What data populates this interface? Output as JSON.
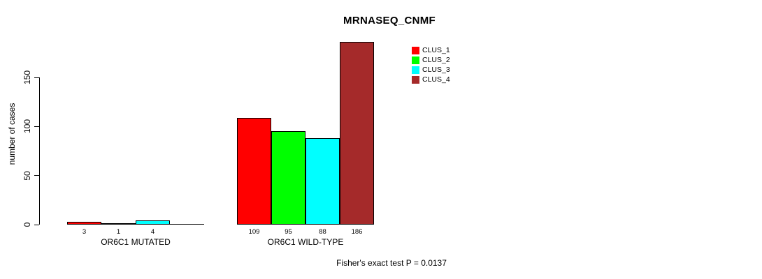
{
  "title": "MRNASEQ_CNMF",
  "y_axis": {
    "label": "number of cases",
    "ticks": [
      0,
      50,
      100,
      150
    ]
  },
  "footer": "Fisher's exact test P = 0.0137",
  "legend": [
    {
      "label": "CLUS_1",
      "color": "#FF0000"
    },
    {
      "label": "CLUS_2",
      "color": "#00FF00"
    },
    {
      "label": "CLUS_3",
      "color": "#00FFFF"
    },
    {
      "label": "CLUS_4",
      "color": "#A52A2A"
    }
  ],
  "chart_data": {
    "type": "bar",
    "title": "MRNASEQ_CNMF",
    "xlabel": "",
    "ylabel": "number of cases",
    "ylim": [
      0,
      150
    ],
    "yticks": [
      0,
      50,
      100,
      150
    ],
    "grid": false,
    "legend_position": "top-right-inside",
    "categories": [
      "OR6C1 MUTATED",
      "OR6C1 WILD-TYPE"
    ],
    "series": [
      {
        "name": "CLUS_1",
        "color": "#FF0000",
        "values": [
          3,
          109
        ]
      },
      {
        "name": "CLUS_2",
        "color": "#00FF00",
        "values": [
          1,
          95
        ]
      },
      {
        "name": "CLUS_3",
        "color": "#00FFFF",
        "values": [
          4,
          88
        ]
      },
      {
        "name": "CLUS_4",
        "color": "#A52A2A",
        "values": [
          0,
          186
        ]
      }
    ],
    "bar_value_labels": [
      [
        "3",
        "1",
        "4",
        ""
      ],
      [
        "109",
        "95",
        "88",
        "186"
      ]
    ],
    "annotation": "Fisher's exact test P = 0.0137"
  }
}
